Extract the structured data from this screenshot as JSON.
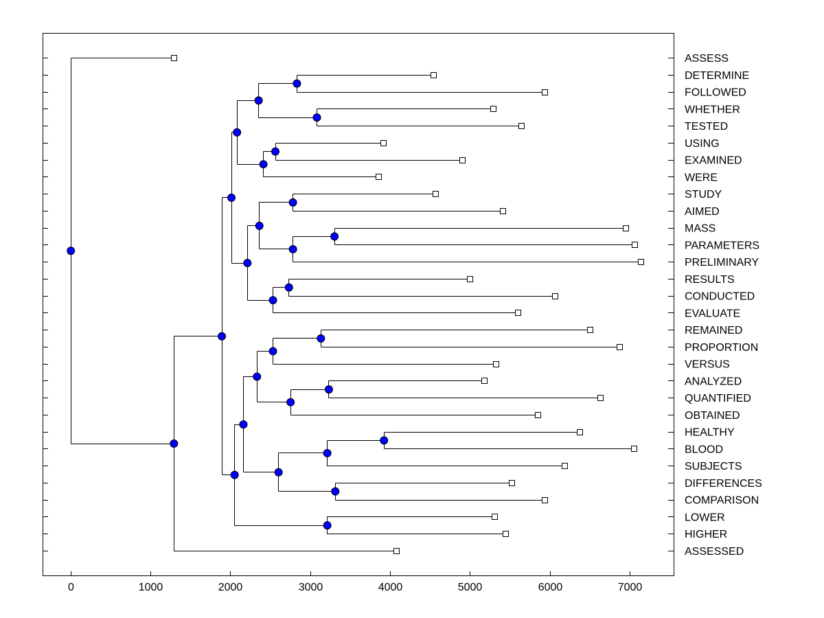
{
  "chart_data": {
    "type": "dendrogram",
    "title": "",
    "xlabel": "",
    "ylabel": "",
    "xlim": [
      -350,
      7550
    ],
    "xticks": [
      0,
      1000,
      2000,
      3000,
      4000,
      5000,
      6000,
      7000
    ],
    "xtick_labels": [
      "0",
      "1000",
      "2000",
      "3000",
      "4000",
      "5000",
      "6000",
      "7000"
    ],
    "colors": {
      "node": "#0000ff",
      "line": "#000000",
      "leaf_marker": "#ffffff"
    },
    "leaves": [
      {
        "label": "ASSESS",
        "x": 1290
      },
      {
        "label": "DETERMINE",
        "x": 4540
      },
      {
        "label": "FOLLOWED",
        "x": 5930
      },
      {
        "label": "WHETHER",
        "x": 5290
      },
      {
        "label": "TESTED",
        "x": 5640
      },
      {
        "label": "USING",
        "x": 3910
      },
      {
        "label": "EXAMINED",
        "x": 4900
      },
      {
        "label": "WERE",
        "x": 3850
      },
      {
        "label": "STUDY",
        "x": 4570
      },
      {
        "label": "AIMED",
        "x": 5410
      },
      {
        "label": "MASS",
        "x": 6950
      },
      {
        "label": "PARAMETERS",
        "x": 7060
      },
      {
        "label": "PRELIMINARY",
        "x": 7140
      },
      {
        "label": "RESULTS",
        "x": 5000
      },
      {
        "label": "CONDUCTED",
        "x": 6060
      },
      {
        "label": "EVALUATE",
        "x": 5600
      },
      {
        "label": "REMAINED",
        "x": 6500
      },
      {
        "label": "PROPORTION",
        "x": 6870
      },
      {
        "label": "VERSUS",
        "x": 5320
      },
      {
        "label": "ANALYZED",
        "x": 5180
      },
      {
        "label": "QUANTIFIED",
        "x": 6630
      },
      {
        "label": "OBTAINED",
        "x": 5850
      },
      {
        "label": "HEALTHY",
        "x": 6370
      },
      {
        "label": "BLOOD",
        "x": 7050
      },
      {
        "label": "SUBJECTS",
        "x": 6180
      },
      {
        "label": "DIFFERENCES",
        "x": 5520
      },
      {
        "label": "COMPARISON",
        "x": 5930
      },
      {
        "label": "LOWER",
        "x": 5310
      },
      {
        "label": "HIGHER",
        "x": 5440
      },
      {
        "label": "ASSESSED",
        "x": 4080
      }
    ],
    "merges": [
      {
        "id": "n1",
        "x": 2830,
        "children": [
          "L1",
          "L2"
        ]
      },
      {
        "id": "n2",
        "x": 3080,
        "children": [
          "L3",
          "L4"
        ]
      },
      {
        "id": "n3",
        "x": 2350,
        "children": [
          "n1",
          "n2"
        ]
      },
      {
        "id": "n4",
        "x": 2560,
        "children": [
          "L5",
          "L6"
        ]
      },
      {
        "id": "n5",
        "x": 2410,
        "children": [
          "n4",
          "L7"
        ]
      },
      {
        "id": "n6",
        "x": 2080,
        "children": [
          "n3",
          "n5"
        ]
      },
      {
        "id": "n7",
        "x": 2780,
        "children": [
          "L8",
          "L9"
        ]
      },
      {
        "id": "n8",
        "x": 3300,
        "children": [
          "L10",
          "L11"
        ]
      },
      {
        "id": "n9",
        "x": 2780,
        "children": [
          "n8",
          "L12"
        ]
      },
      {
        "id": "n10",
        "x": 2360,
        "children": [
          "n7",
          "n9"
        ]
      },
      {
        "id": "n11",
        "x": 2730,
        "children": [
          "L13",
          "L14"
        ]
      },
      {
        "id": "n12",
        "x": 2530,
        "children": [
          "n11",
          "L15"
        ]
      },
      {
        "id": "n13",
        "x": 2210,
        "children": [
          "n10",
          "n12"
        ]
      },
      {
        "id": "n14",
        "x": 2010,
        "children": [
          "n6",
          "n13"
        ]
      },
      {
        "id": "n15",
        "x": 3130,
        "children": [
          "L16",
          "L17"
        ]
      },
      {
        "id": "n16",
        "x": 2530,
        "children": [
          "n15",
          "L18"
        ]
      },
      {
        "id": "n17",
        "x": 3230,
        "children": [
          "L19",
          "L20"
        ]
      },
      {
        "id": "n18",
        "x": 2750,
        "children": [
          "n17",
          "L21"
        ]
      },
      {
        "id": "n19",
        "x": 2330,
        "children": [
          "n16",
          "n18"
        ]
      },
      {
        "id": "n20",
        "x": 3920,
        "children": [
          "L22",
          "L23"
        ]
      },
      {
        "id": "n21",
        "x": 3210,
        "children": [
          "n20",
          "L24"
        ]
      },
      {
        "id": "n22",
        "x": 3310,
        "children": [
          "L25",
          "L26"
        ]
      },
      {
        "id": "n23",
        "x": 2600,
        "children": [
          "n21",
          "n22"
        ]
      },
      {
        "id": "n24",
        "x": 2160,
        "children": [
          "n19",
          "n23"
        ]
      },
      {
        "id": "n25",
        "x": 3210,
        "children": [
          "L27",
          "L28"
        ]
      },
      {
        "id": "n26",
        "x": 2050,
        "children": [
          "n24",
          "n25"
        ]
      },
      {
        "id": "n27",
        "x": 1890,
        "children": [
          "n14",
          "n26"
        ]
      },
      {
        "id": "n28",
        "x": 1290,
        "children": [
          "n27",
          "L29"
        ]
      },
      {
        "id": "n29",
        "x": 0,
        "children": [
          "L0",
          "n28"
        ]
      }
    ]
  }
}
